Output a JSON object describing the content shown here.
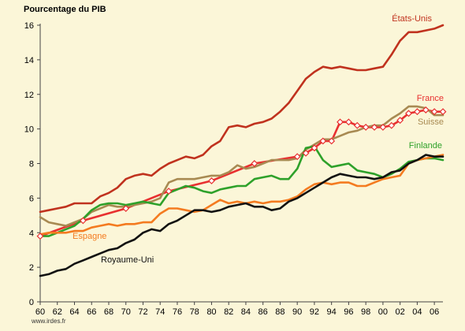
{
  "chart_data": {
    "type": "line",
    "title": "Pourcentage du PIB",
    "xlabel": "",
    "ylabel": "",
    "source": "www.irdes.fr",
    "xlim": [
      1960,
      2007
    ],
    "ylim": [
      0,
      16
    ],
    "yticks": [
      0,
      2,
      4,
      6,
      8,
      10,
      12,
      14,
      16
    ],
    "xticks": [
      1960,
      1962,
      1964,
      1966,
      1968,
      1970,
      1972,
      1974,
      1976,
      1978,
      1980,
      1982,
      1984,
      1986,
      1988,
      1990,
      1992,
      1994,
      1996,
      1998,
      2000,
      2002,
      2004,
      2006
    ],
    "xtick_labels": [
      "60",
      "62",
      "64",
      "66",
      "68",
      "70",
      "72",
      "74",
      "76",
      "78",
      "80",
      "82",
      "84",
      "86",
      "88",
      "90",
      "92",
      "94",
      "96",
      "98",
      "00",
      "02",
      "04",
      "06"
    ],
    "grid": false,
    "legend": "labels placed next to lines",
    "series": [
      {
        "name": "États-Unis",
        "color": "#c0321e",
        "x": [
          1960,
          1961,
          1962,
          1963,
          1964,
          1965,
          1966,
          1967,
          1968,
          1969,
          1970,
          1971,
          1972,
          1973,
          1974,
          1975,
          1976,
          1977,
          1978,
          1979,
          1980,
          1981,
          1982,
          1983,
          1984,
          1985,
          1986,
          1987,
          1988,
          1989,
          1990,
          1991,
          1992,
          1993,
          1994,
          1995,
          1996,
          1997,
          1998,
          1999,
          2000,
          2001,
          2002,
          2003,
          2004,
          2005,
          2006,
          2007
        ],
        "y": [
          5.2,
          5.3,
          5.4,
          5.5,
          5.7,
          5.7,
          5.7,
          6.1,
          6.3,
          6.6,
          7.1,
          7.3,
          7.4,
          7.3,
          7.7,
          8.0,
          8.2,
          8.4,
          8.3,
          8.5,
          9.0,
          9.3,
          10.1,
          10.2,
          10.1,
          10.3,
          10.4,
          10.6,
          11.0,
          11.5,
          12.2,
          12.9,
          13.3,
          13.6,
          13.5,
          13.6,
          13.5,
          13.4,
          13.4,
          13.5,
          13.6,
          14.3,
          15.1,
          15.6,
          15.6,
          15.7,
          15.8,
          16.0
        ],
        "markers": false
      },
      {
        "name": "France",
        "color": "#e83030",
        "x": [
          1960,
          1965,
          1970,
          1975,
          1980,
          1985,
          1990,
          1991,
          1992,
          1993,
          1994,
          1995,
          1996,
          1997,
          1998,
          1999,
          2000,
          2001,
          2002,
          2003,
          2004,
          2005,
          2006,
          2007
        ],
        "y": [
          3.8,
          4.7,
          5.4,
          6.4,
          7.0,
          8.0,
          8.4,
          8.6,
          8.9,
          9.3,
          9.3,
          10.4,
          10.4,
          10.2,
          10.1,
          10.1,
          10.1,
          10.2,
          10.5,
          10.9,
          11.0,
          11.1,
          11.0,
          11.0
        ],
        "markers": true
      },
      {
        "name": "Suisse",
        "color": "#a88a52",
        "x": [
          1960,
          1961,
          1962,
          1963,
          1964,
          1965,
          1966,
          1967,
          1968,
          1969,
          1970,
          1971,
          1972,
          1973,
          1974,
          1975,
          1976,
          1977,
          1978,
          1979,
          1980,
          1981,
          1982,
          1983,
          1984,
          1985,
          1986,
          1987,
          1988,
          1989,
          1990,
          1991,
          1992,
          1993,
          1994,
          1995,
          1996,
          1997,
          1998,
          1999,
          2000,
          2001,
          2002,
          2003,
          2004,
          2005,
          2006,
          2007
        ],
        "y": [
          4.9,
          4.6,
          4.5,
          4.4,
          4.6,
          4.8,
          5.2,
          5.4,
          5.6,
          5.5,
          5.5,
          5.6,
          5.7,
          5.8,
          6.0,
          6.9,
          7.1,
          7.1,
          7.1,
          7.2,
          7.3,
          7.3,
          7.5,
          7.9,
          7.7,
          7.8,
          8.0,
          8.2,
          8.2,
          8.2,
          8.3,
          8.8,
          9.1,
          9.4,
          9.4,
          9.6,
          9.8,
          9.9,
          10.1,
          10.2,
          10.2,
          10.6,
          10.9,
          11.3,
          11.3,
          11.2,
          10.8,
          10.8
        ],
        "markers": false
      },
      {
        "name": "Finlande",
        "color": "#2ea12a",
        "x": [
          1960,
          1961,
          1962,
          1963,
          1964,
          1965,
          1966,
          1967,
          1968,
          1969,
          1970,
          1971,
          1972,
          1973,
          1974,
          1975,
          1976,
          1977,
          1978,
          1979,
          1980,
          1981,
          1982,
          1983,
          1984,
          1985,
          1986,
          1987,
          1988,
          1989,
          1990,
          1991,
          1992,
          1993,
          1994,
          1995,
          1996,
          1997,
          1998,
          1999,
          2000,
          2001,
          2002,
          2003,
          2004,
          2005,
          2006,
          2007
        ],
        "y": [
          3.8,
          3.8,
          4.0,
          4.2,
          4.4,
          4.8,
          5.3,
          5.6,
          5.7,
          5.7,
          5.6,
          5.7,
          5.8,
          5.7,
          5.6,
          6.3,
          6.5,
          6.7,
          6.6,
          6.4,
          6.3,
          6.5,
          6.6,
          6.7,
          6.7,
          7.1,
          7.2,
          7.3,
          7.1,
          7.1,
          7.7,
          8.9,
          9.0,
          8.2,
          7.8,
          7.9,
          8.0,
          7.6,
          7.5,
          7.4,
          7.2,
          7.4,
          7.7,
          8.1,
          8.2,
          8.3,
          8.3,
          8.2
        ],
        "markers": false
      },
      {
        "name": "Espagne",
        "color": "#f47b20",
        "x": [
          1960,
          1961,
          1962,
          1963,
          1964,
          1965,
          1966,
          1967,
          1968,
          1969,
          1970,
          1971,
          1972,
          1973,
          1974,
          1975,
          1976,
          1977,
          1978,
          1979,
          1980,
          1981,
          1982,
          1983,
          1984,
          1985,
          1986,
          1987,
          1988,
          1989,
          1990,
          1991,
          1992,
          1993,
          1994,
          1995,
          1996,
          1997,
          1998,
          1999,
          2000,
          2001,
          2002,
          2003,
          2004,
          2005,
          2006,
          2007
        ],
        "y": [
          3.9,
          4.0,
          4.0,
          4.0,
          4.1,
          4.1,
          4.3,
          4.4,
          4.5,
          4.4,
          4.5,
          4.5,
          4.6,
          4.6,
          5.1,
          5.4,
          5.4,
          5.3,
          5.2,
          5.3,
          5.6,
          5.9,
          5.7,
          5.8,
          5.7,
          5.8,
          5.7,
          5.8,
          5.8,
          5.9,
          6.1,
          6.5,
          6.8,
          6.9,
          6.8,
          6.9,
          6.9,
          6.7,
          6.7,
          6.9,
          7.1,
          7.2,
          7.3,
          8.0,
          8.2,
          8.3,
          8.4,
          8.5
        ],
        "markers": false
      },
      {
        "name": "Royaume-Uni",
        "color": "#111111",
        "x": [
          1960,
          1961,
          1962,
          1963,
          1964,
          1965,
          1966,
          1967,
          1968,
          1969,
          1970,
          1971,
          1972,
          1973,
          1974,
          1975,
          1976,
          1977,
          1978,
          1979,
          1980,
          1981,
          1982,
          1983,
          1984,
          1985,
          1986,
          1987,
          1988,
          1989,
          1990,
          1991,
          1992,
          1993,
          1994,
          1995,
          1996,
          1997,
          1998,
          1999,
          2000,
          2001,
          2002,
          2003,
          2004,
          2005,
          2006,
          2007
        ],
        "y": [
          1.5,
          1.6,
          1.8,
          1.9,
          2.2,
          2.4,
          2.6,
          2.8,
          3.0,
          3.1,
          3.4,
          3.6,
          4.0,
          4.2,
          4.1,
          4.5,
          4.7,
          5.0,
          5.3,
          5.3,
          5.2,
          5.3,
          5.5,
          5.6,
          5.7,
          5.5,
          5.5,
          5.3,
          5.4,
          5.8,
          6.0,
          6.3,
          6.6,
          6.9,
          7.2,
          7.4,
          7.3,
          7.2,
          7.2,
          7.1,
          7.2,
          7.5,
          7.6,
          8.0,
          8.2,
          8.5,
          8.4,
          8.4
        ],
        "markers": false
      }
    ]
  }
}
